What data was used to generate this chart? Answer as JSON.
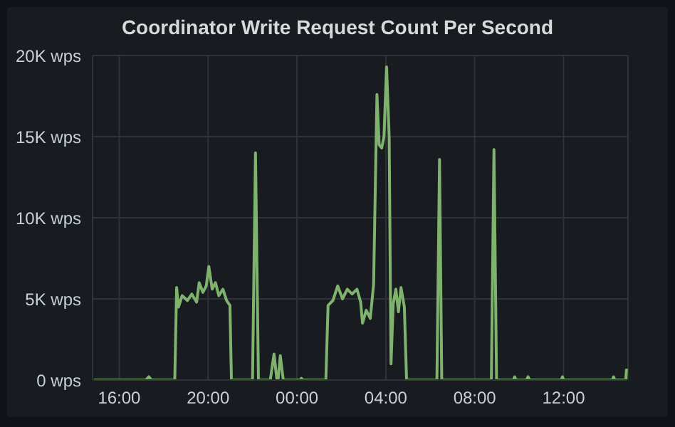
{
  "chart_data": {
    "type": "line",
    "title": "Coordinator Write Request Count Per Second",
    "x": [
      "--01-01T14:52",
      "--01-01T17:12",
      "--01-01T17:20",
      "--01-01T17:27",
      "--01-01T18:30",
      "--01-01T18:35",
      "--01-01T18:40",
      "--01-01T18:50",
      "--01-01T19:04",
      "--01-01T19:16",
      "--01-01T19:29",
      "--01-01T19:36",
      "--01-01T19:46",
      "--01-01T19:55",
      "--01-01T20:02",
      "--01-01T20:11",
      "--01-01T20:20",
      "--01-01T20:29",
      "--01-01T20:40",
      "--01-01T20:50",
      "--01-01T20:59",
      "--01-01T21:03",
      "--01-01T22:00",
      "--01-01T22:08",
      "--01-01T22:16",
      "--01-01T22:48",
      "--01-01T22:58",
      "--01-01T23:06",
      "--01-01T23:09",
      "--01-01T23:15",
      "--01-01T23:23",
      "--01-02T00:09",
      "--01-02T00:12",
      "--01-02T00:15",
      "--01-02T01:18",
      "--01-02T01:24",
      "--01-02T01:37",
      "--01-02T01:50",
      "--01-02T02:03",
      "--01-02T02:16",
      "--01-02T02:29",
      "--01-02T02:42",
      "--01-02T02:52",
      "--01-02T02:57",
      "--01-02T03:07",
      "--01-02T03:18",
      "--01-02T03:27",
      "--01-02T03:36",
      "--01-02T03:42",
      "--01-02T03:49",
      "--01-02T03:55",
      "--01-02T04:02",
      "--01-02T04:09",
      "--01-02T04:14",
      "--01-02T04:20",
      "--01-02T04:27",
      "--01-02T04:34",
      "--01-02T04:41",
      "--01-02T04:50",
      "--01-02T04:56",
      "--01-02T05:02",
      "--01-02T06:18",
      "--01-02T06:25",
      "--01-02T06:31",
      "--01-02T08:45",
      "--01-02T08:52",
      "--01-02T08:59",
      "--01-02T09:45",
      "--01-02T09:48",
      "--01-02T09:51",
      "--01-02T10:20",
      "--01-02T10:24",
      "--01-02T10:28",
      "--01-02T11:54",
      "--01-02T11:57",
      "--01-02T12:00",
      "--01-02T14:12",
      "--01-02T14:15",
      "--01-02T14:18",
      "--01-02T14:48",
      "--01-02T14:50"
    ],
    "series": [
      {
        "color": "#7eb26d",
        "values": [
          0,
          0,
          200,
          0,
          0,
          5700,
          4500,
          5200,
          4900,
          5300,
          4800,
          6000,
          5400,
          5800,
          7000,
          5600,
          6000,
          5200,
          5600,
          4900,
          4600,
          0,
          0,
          14000,
          0,
          0,
          1600,
          0,
          0,
          1500,
          0,
          0,
          100,
          0,
          0,
          4600,
          4900,
          5800,
          5000,
          5600,
          5300,
          5600,
          4800,
          3500,
          4300,
          3800,
          5900,
          17600,
          14500,
          14300,
          15000,
          19300,
          15000,
          1000,
          4700,
          5600,
          4200,
          5700,
          4500,
          0,
          0,
          0,
          13600,
          0,
          0,
          14200,
          0,
          0,
          200,
          0,
          0,
          200,
          0,
          0,
          200,
          0,
          0,
          200,
          0,
          0,
          700
        ]
      }
    ],
    "xlim": [
      "--01-01T14:48",
      "--01-02T14:54"
    ],
    "xticks": [
      {
        "value": "--01-01T16:00",
        "label": "16:00"
      },
      {
        "value": "--01-01T20:00",
        "label": "20:00"
      },
      {
        "value": "--01-02T00:00",
        "label": "00:00"
      },
      {
        "value": "--01-02T04:00",
        "label": "04:00"
      },
      {
        "value": "--01-02T08:00",
        "label": "08:00"
      },
      {
        "value": "--01-02T12:00",
        "label": "12:00"
      }
    ],
    "ylim": [
      0,
      20000
    ],
    "yticks": [
      {
        "value": 0,
        "label": "0 wps"
      },
      {
        "value": 5000,
        "label": "5K wps"
      },
      {
        "value": 10000,
        "label": "10K wps"
      },
      {
        "value": 15000,
        "label": "15K wps"
      },
      {
        "value": 20000,
        "label": "20K wps"
      }
    ],
    "grid": true,
    "legend": false,
    "marker": "none",
    "line_style": "solid"
  }
}
